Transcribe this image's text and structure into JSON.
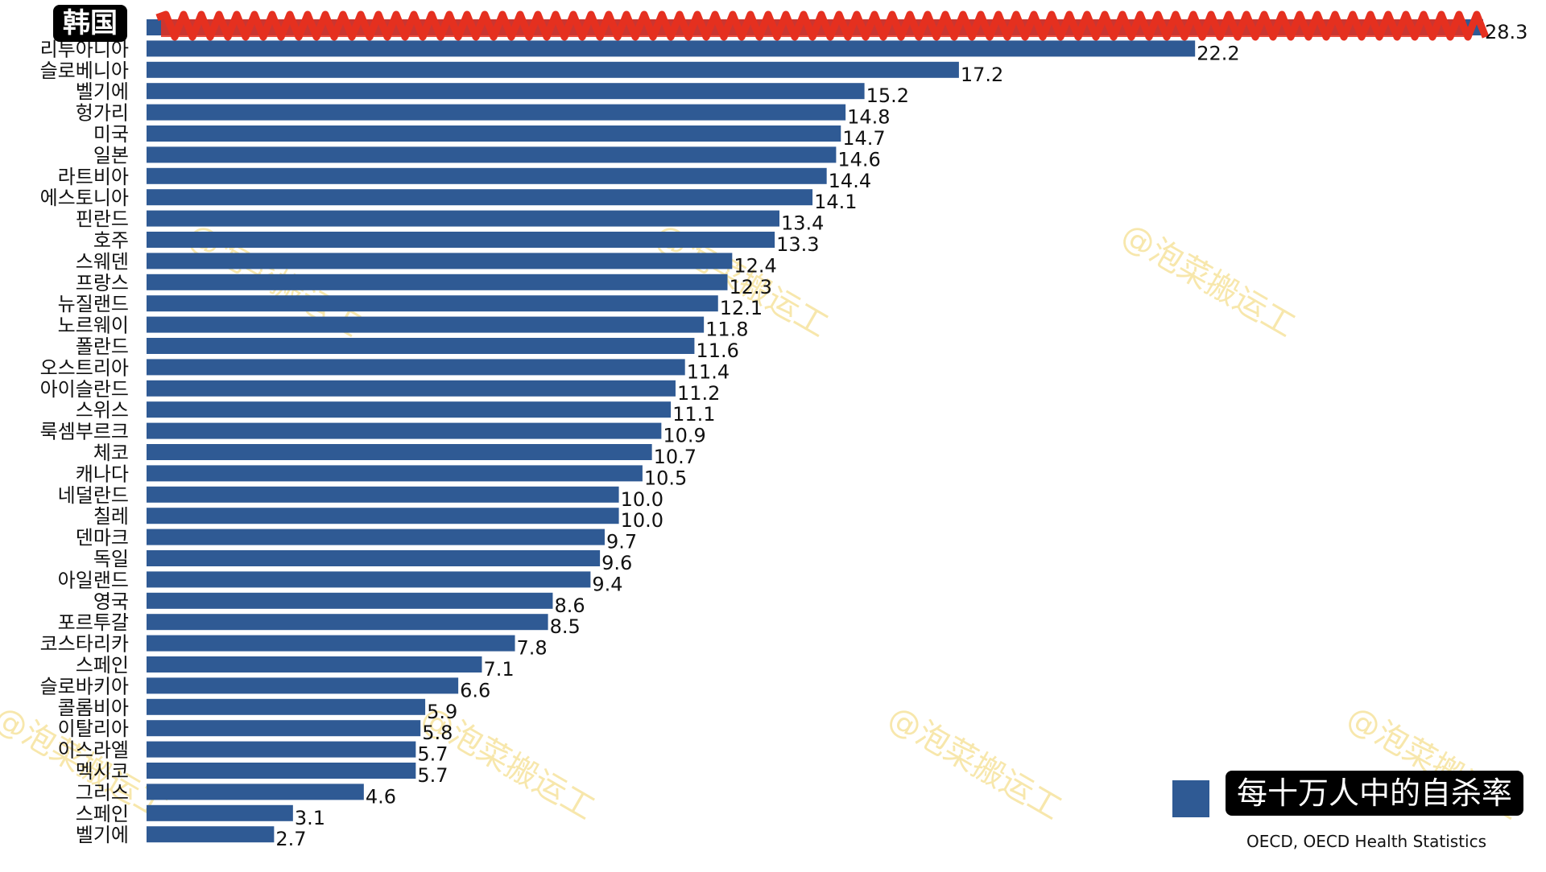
{
  "title": "韩国",
  "legend_label": "每十万人中的自杀率",
  "source": "OECD, OECD Health Statistics",
  "watermark": "@泡菜搬运工",
  "colors": {
    "bar": "#2f5a94",
    "scribble": "#e53020"
  },
  "chart_data": {
    "type": "bar",
    "orientation": "horizontal",
    "categories": [
      "",
      "리투아니아",
      "슬로베니아",
      "벨기에",
      "헝가리",
      "미국",
      "일본",
      "라트비아",
      "에스토니아",
      "핀란드",
      "호주",
      "스웨덴",
      "프랑스",
      "뉴질랜드",
      "노르웨이",
      "폴란드",
      "오스트리아",
      "아이슬란드",
      "스위스",
      "룩셈부르크",
      "체코",
      "캐나다",
      "네덜란드",
      "칠레",
      "덴마크",
      "독일",
      "아일랜드",
      "영국",
      "포르투갈",
      "코스타리카",
      "스페인",
      "슬로바키아",
      "콜롬비아",
      "이탈리아",
      "이스라엘",
      "멕시코",
      "그리스",
      "스페인",
      "벨기에"
    ],
    "values": [
      28.3,
      22.2,
      17.2,
      15.2,
      14.8,
      14.7,
      14.6,
      14.4,
      14.1,
      13.4,
      13.3,
      12.4,
      12.3,
      12.1,
      11.8,
      11.6,
      11.4,
      11.2,
      11.1,
      10.9,
      10.7,
      10.5,
      10.0,
      10.0,
      9.7,
      9.6,
      9.4,
      8.6,
      8.5,
      7.8,
      7.1,
      6.6,
      5.9,
      5.8,
      5.7,
      5.7,
      4.6,
      3.1,
      2.7
    ],
    "value_labels": [
      "28.3",
      "22.2",
      "17.2",
      "15.2",
      "14.8",
      "14.7",
      "14.6",
      "14.4",
      "14.1",
      "13.4",
      "13.3",
      "12.4",
      "12.3",
      "12.1",
      "11.8",
      "11.6",
      "11.4",
      "11.2",
      "11.1",
      "10.9",
      "10.7",
      "10.5",
      "10.0",
      "10.0",
      "9.7",
      "9.6",
      "9.4",
      "8.6",
      "8.5",
      "7.8",
      "7.1",
      "6.6",
      "5.9",
      "5.8",
      "5.7",
      "5.7",
      "4.6",
      "3.1",
      "2.7"
    ],
    "series": [
      {
        "name": "每十万人中的自杀率"
      }
    ],
    "xlim": [
      0,
      28.3
    ],
    "grid": false,
    "legend_position": "bottom-right"
  }
}
